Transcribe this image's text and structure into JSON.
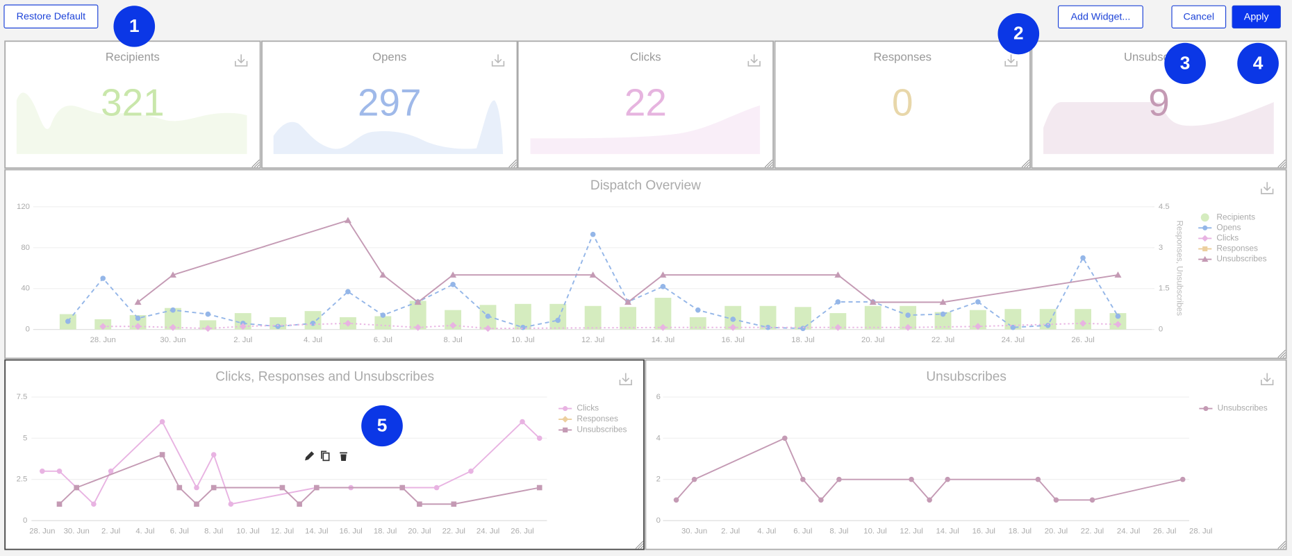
{
  "toolbar": {
    "restore": "Restore Default",
    "add_widget": "Add Widget...",
    "cancel": "Cancel",
    "apply": "Apply"
  },
  "badges": [
    "1",
    "2",
    "3",
    "4",
    "5"
  ],
  "kpis": [
    {
      "title": "Recipients",
      "value": 321,
      "color": "#c9e7ab"
    },
    {
      "title": "Opens",
      "value": 297,
      "color": "#9fb9e9"
    },
    {
      "title": "Clicks",
      "value": 22,
      "color": "#e6b4df"
    },
    {
      "title": "Responses",
      "value": 0,
      "color": "#e8d7aa"
    },
    {
      "title": "Unsubscribes",
      "value": 9,
      "color": "#c49ab4"
    }
  ],
  "chart_data": [
    {
      "type": "combo",
      "title": "Dispatch Overview",
      "y2_label": "Responses, Unsubscribes",
      "x": [
        "27. Jun",
        "28. Jun",
        "29. Jun",
        "30. Jun",
        "1. Jul",
        "2. Jul",
        "3. Jul",
        "4. Jul",
        "5. Jul",
        "6. Jul",
        "7. Jul",
        "8. Jul",
        "9. Jul",
        "10. Jul",
        "11. Jul",
        "12. Jul",
        "13. Jul",
        "14. Jul",
        "15. Jul",
        "16. Jul",
        "17. Jul",
        "18. Jul",
        "19. Jul",
        "20. Jul",
        "21. Jul",
        "22. Jul",
        "23. Jul",
        "24. Jul",
        "25. Jul",
        "26. Jul",
        "27. Jul"
      ],
      "xlim": [
        "27. Jun",
        "27. Jul"
      ],
      "xticks": [
        "28. Jun",
        "30. Jun",
        "2. Jul",
        "4. Jul",
        "6. Jul",
        "8. Jul",
        "10. Jul",
        "12. Jul",
        "14. Jul",
        "16. Jul",
        "18. Jul",
        "20. Jul",
        "22. Jul",
        "24. Jul",
        "26. Jul"
      ],
      "ylim": [
        0,
        120
      ],
      "yticks": [
        0,
        40,
        80,
        120
      ],
      "y2lim": [
        0,
        4.5
      ],
      "y2ticks": [
        0,
        1.5,
        3,
        4.5
      ],
      "grid": true,
      "legend": "right",
      "series": [
        {
          "name": "Recipients",
          "type": "bar",
          "marker": "circle",
          "color": "#d5ecbf",
          "values": [
            15,
            10,
            14,
            21,
            9,
            16,
            12,
            18,
            12,
            13,
            28,
            19,
            24,
            25,
            25,
            23,
            22,
            31,
            12,
            23,
            23,
            22,
            16,
            23,
            23,
            17,
            19,
            20,
            20,
            20,
            16
          ]
        },
        {
          "name": "Opens",
          "type": "line",
          "dash": "dashed",
          "marker": "circle",
          "color": "#94b6e8",
          "values": [
            8,
            50,
            11,
            19,
            15,
            6,
            3,
            6,
            37,
            14,
            27,
            44,
            13,
            2,
            9,
            93,
            27,
            42,
            19,
            10,
            2,
            1,
            27,
            27,
            14,
            15,
            27,
            2,
            4,
            70,
            13
          ]
        },
        {
          "name": "Clicks",
          "type": "line",
          "dash": "dotted",
          "marker": "diamond",
          "color": "#e8b3e2",
          "x": [
            "28. Jun",
            "29. Jun",
            "30. Jun",
            "1. Jul",
            "2. Jul",
            "5. Jul",
            "7. Jul",
            "8. Jul",
            "9. Jul",
            "14. Jul",
            "16. Jul",
            "19. Jul",
            "21. Jul",
            "23. Jul",
            "26. Jul",
            "27. Jul"
          ],
          "values": [
            3,
            3,
            2,
            1,
            3,
            6,
            2,
            4,
            1,
            2,
            2,
            2,
            2,
            3,
            6,
            5
          ]
        },
        {
          "name": "Responses",
          "type": "line",
          "marker": "square",
          "color": "#eccf9e",
          "x": [],
          "values": []
        },
        {
          "name": "Unsubscribes",
          "type": "line",
          "marker": "triangle",
          "color": "#c49ab4",
          "axis": "y2",
          "x": [
            "29. Jun",
            "30. Jun",
            "5. Jul",
            "6. Jul",
            "7. Jul",
            "8. Jul",
            "12. Jul",
            "13. Jul",
            "14. Jul",
            "19. Jul",
            "20. Jul",
            "22. Jul",
            "27. Jul"
          ],
          "values": [
            1,
            2,
            4,
            2,
            1,
            2,
            2,
            1,
            2,
            2,
            1,
            1,
            2
          ]
        }
      ]
    },
    {
      "type": "line",
      "title": "Clicks, Responses and Unsubscribes",
      "xlim": [
        "27. Jun",
        "27. Jul"
      ],
      "xticks": [
        "28. Jun",
        "30. Jun",
        "2. Jul",
        "4. Jul",
        "6. Jul",
        "8. Jul",
        "10. Jul",
        "12. Jul",
        "14. Jul",
        "16. Jul",
        "18. Jul",
        "20. Jul",
        "22. Jul",
        "24. Jul",
        "26. Jul"
      ],
      "ylim": [
        0,
        7.5
      ],
      "yticks": [
        0,
        2.5,
        5,
        7.5
      ],
      "grid": true,
      "legend": "right",
      "series": [
        {
          "name": "Clicks",
          "marker": "circle",
          "color": "#e8b3e2",
          "x": [
            "28. Jun",
            "29. Jun",
            "30. Jun",
            "1. Jul",
            "2. Jul",
            "5. Jul",
            "7. Jul",
            "8. Jul",
            "9. Jul",
            "14. Jul",
            "16. Jul",
            "19. Jul",
            "21. Jul",
            "23. Jul",
            "26. Jul",
            "27. Jul"
          ],
          "values": [
            3,
            3,
            2,
            1,
            3,
            6,
            2,
            4,
            1,
            2,
            2,
            2,
            2,
            3,
            6,
            5
          ]
        },
        {
          "name": "Responses",
          "marker": "diamond",
          "color": "#eccf9e",
          "x": [],
          "values": []
        },
        {
          "name": "Unsubscribes",
          "marker": "square",
          "color": "#c49ab4",
          "x": [
            "29. Jun",
            "30. Jun",
            "5. Jul",
            "6. Jul",
            "7. Jul",
            "8. Jul",
            "12. Jul",
            "13. Jul",
            "14. Jul",
            "19. Jul",
            "20. Jul",
            "22. Jul",
            "27. Jul"
          ],
          "values": [
            1,
            2,
            4,
            2,
            1,
            2,
            2,
            1,
            2,
            2,
            1,
            1,
            2
          ]
        }
      ]
    },
    {
      "type": "line",
      "title": "Unsubscribes",
      "xlim": [
        "29. Jun",
        "28. Jul"
      ],
      "xticks": [
        "30. Jun",
        "2. Jul",
        "4. Jul",
        "6. Jul",
        "8. Jul",
        "10. Jul",
        "12. Jul",
        "14. Jul",
        "16. Jul",
        "18. Jul",
        "20. Jul",
        "22. Jul",
        "24. Jul",
        "26. Jul",
        "28. Jul"
      ],
      "ylim": [
        0,
        6
      ],
      "yticks": [
        0,
        2,
        4,
        6
      ],
      "grid": true,
      "legend": "right",
      "series": [
        {
          "name": "Unsubscribes",
          "marker": "circle",
          "color": "#c49ab4",
          "x": [
            "29. Jun",
            "30. Jun",
            "5. Jul",
            "6. Jul",
            "7. Jul",
            "8. Jul",
            "12. Jul",
            "13. Jul",
            "14. Jul",
            "19. Jul",
            "20. Jul",
            "22. Jul",
            "27. Jul"
          ],
          "values": [
            1,
            2,
            4,
            2,
            1,
            2,
            2,
            1,
            2,
            2,
            1,
            1,
            2
          ]
        }
      ]
    }
  ]
}
